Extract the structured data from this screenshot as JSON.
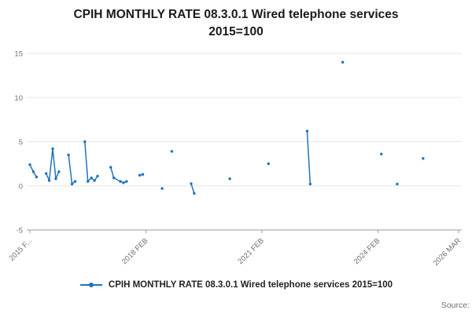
{
  "header": {
    "title_line1": "CPIH MONTHLY RATE 08.3.0.1 Wired telephone services",
    "title_line2": "2015=100"
  },
  "legend": {
    "label": "CPIH MONTHLY RATE 08.3.0.1 Wired telephone services 2015=100"
  },
  "footer": {
    "source_label": "Source:"
  },
  "colors": {
    "series": "#2073bc",
    "grid": "#e6e6e6",
    "axis": "#9b9b9b",
    "tick_text": "#707070",
    "title_text": "#1a1a1a"
  },
  "chart_data": {
    "type": "line",
    "title": "CPIH MONTHLY RATE 08.3.0.1 Wired telephone services 2015=100",
    "xlabel": "",
    "ylabel": "",
    "xlim": [
      2015.08,
      2026.25
    ],
    "ylim": [
      -5,
      15
    ],
    "yticks": [
      -5,
      0,
      5,
      10,
      15
    ],
    "xticks": [
      {
        "v": 2015.08,
        "label": "2015 F..."
      },
      {
        "v": 2018.08,
        "label": "2018 FEB"
      },
      {
        "v": 2021.08,
        "label": "2021 FEB"
      },
      {
        "v": 2024.08,
        "label": "2024 FEB"
      },
      {
        "v": 2026.17,
        "label": "2026 MAR"
      }
    ],
    "grid": true,
    "legend_position": "bottom",
    "series": [
      {
        "name": "CPIH MONTHLY RATE 08.3.0.1 Wired telephone services 2015=100",
        "segments": [
          [
            [
              2015.08,
              2.4
            ],
            [
              2015.17,
              1.6
            ],
            [
              2015.25,
              1.0
            ]
          ],
          [
            [
              2015.5,
              1.4
            ],
            [
              2015.58,
              0.6
            ],
            [
              2015.67,
              4.2
            ],
            [
              2015.75,
              0.8
            ],
            [
              2015.83,
              1.6
            ]
          ],
          [
            [
              2016.08,
              3.5
            ],
            [
              2016.17,
              0.2
            ],
            [
              2016.25,
              0.5
            ]
          ],
          [
            [
              2016.5,
              5.0
            ],
            [
              2016.58,
              0.5
            ],
            [
              2016.67,
              0.9
            ],
            [
              2016.75,
              0.6
            ],
            [
              2016.83,
              1.1
            ]
          ],
          [
            [
              2017.17,
              2.1
            ],
            [
              2017.25,
              0.9
            ],
            [
              2017.42,
              0.5
            ],
            [
              2017.5,
              0.35
            ],
            [
              2017.58,
              0.5
            ]
          ],
          [
            [
              2017.92,
              1.2
            ],
            [
              2018.0,
              1.3
            ]
          ],
          [
            [
              2018.5,
              -0.3
            ]
          ],
          [
            [
              2018.75,
              3.9
            ]
          ],
          [
            [
              2019.25,
              0.25
            ],
            [
              2019.33,
              -0.85
            ]
          ],
          [
            [
              2020.25,
              0.8
            ]
          ],
          [
            [
              2021.25,
              2.5
            ]
          ],
          [
            [
              2022.25,
              6.2
            ],
            [
              2022.33,
              0.2
            ]
          ],
          [
            [
              2023.17,
              14.0
            ]
          ],
          [
            [
              2024.17,
              3.6
            ]
          ],
          [
            [
              2024.58,
              0.2
            ]
          ],
          [
            [
              2025.25,
              3.1
            ]
          ]
        ]
      }
    ]
  }
}
